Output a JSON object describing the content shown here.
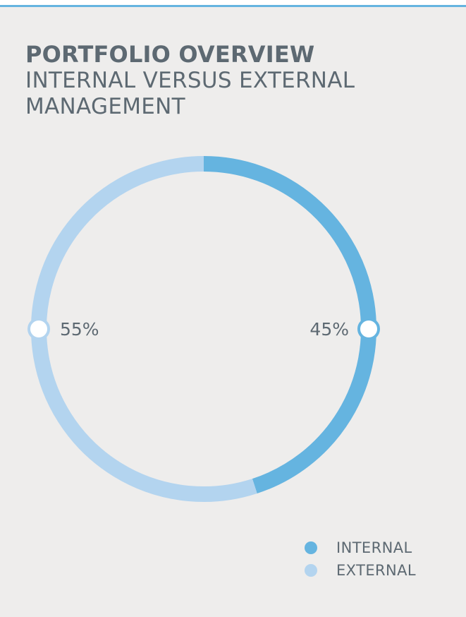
{
  "header": {
    "title": "PORTFOLIO OVERVIEW",
    "subtitle": "INTERNAL VERSUS EXTERNAL MANAGEMENT"
  },
  "colors": {
    "internal": "#65b4e0",
    "external": "#b3d4ef",
    "text": "#5d6972",
    "accent_rule": "#65b4e0"
  },
  "chart_data": {
    "type": "pie",
    "title": "PORTFOLIO OVERVIEW",
    "subtitle": "INTERNAL VERSUS EXTERNAL MANAGEMENT",
    "categories": [
      "INTERNAL",
      "EXTERNAL"
    ],
    "values": [
      45,
      55
    ],
    "data_labels": [
      "45%",
      "55%"
    ],
    "legend_position": "bottom-right"
  },
  "legend": {
    "items": [
      {
        "label": "INTERNAL"
      },
      {
        "label": "EXTERNAL"
      }
    ]
  }
}
